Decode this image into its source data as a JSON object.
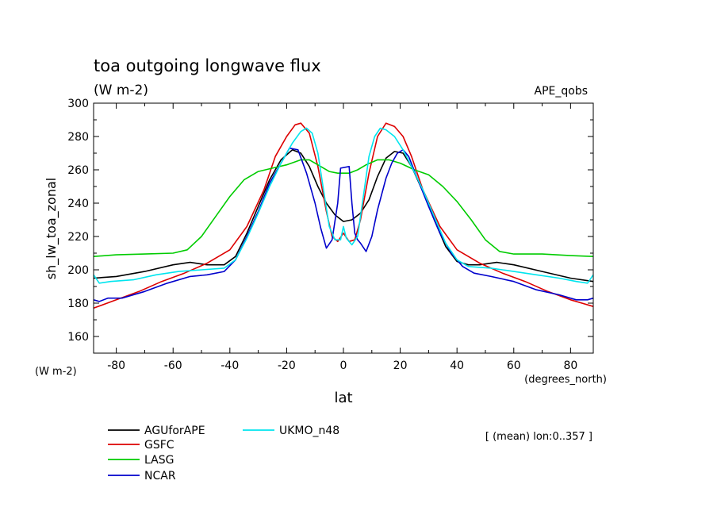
{
  "chart_data": {
    "type": "line",
    "title": "toa outgoing longwave flux",
    "units_label": "(W m-2)",
    "experiment": "APE_qobs",
    "xlabel": "lat",
    "x_units": "(degrees_north)",
    "ylabel": "sh_lw_toa_zonal",
    "y_units": "(W m-2)",
    "mean_note": "[ (mean) lon:0..357 ]",
    "xlim": [
      -88,
      88
    ],
    "ylim": [
      150,
      300
    ],
    "xticks": [
      -80,
      -60,
      -40,
      -20,
      0,
      20,
      40,
      60,
      80
    ],
    "yticks": [
      160,
      180,
      200,
      220,
      240,
      260,
      280,
      300
    ],
    "xtick_labels": [
      "-80",
      "-60",
      "-40",
      "-20",
      "0",
      "20",
      "40",
      "60",
      "80"
    ],
    "ytick_labels": [
      "160",
      "180",
      "200",
      "220",
      "240",
      "260",
      "280",
      "300"
    ],
    "grid": false,
    "legend_placement": "bottom-left",
    "series": [
      {
        "name": "AGUforAPE",
        "color": "#000000",
        "points": [
          [
            -88,
            195
          ],
          [
            -80,
            196
          ],
          [
            -70,
            199
          ],
          [
            -60,
            203
          ],
          [
            -54,
            204.5
          ],
          [
            -48,
            203
          ],
          [
            -42,
            203
          ],
          [
            -38,
            208
          ],
          [
            -34,
            222
          ],
          [
            -30,
            238
          ],
          [
            -26,
            254
          ],
          [
            -22,
            266
          ],
          [
            -18,
            272
          ],
          [
            -15,
            270
          ],
          [
            -12,
            262
          ],
          [
            -9,
            250
          ],
          [
            -6,
            240
          ],
          [
            -3,
            233
          ],
          [
            0,
            229
          ],
          [
            3,
            230
          ],
          [
            6,
            234
          ],
          [
            9,
            242
          ],
          [
            12,
            256
          ],
          [
            15,
            267
          ],
          [
            18,
            271
          ],
          [
            21,
            270
          ],
          [
            24,
            262
          ],
          [
            28,
            247
          ],
          [
            32,
            230
          ],
          [
            36,
            214
          ],
          [
            40,
            205
          ],
          [
            44,
            203
          ],
          [
            48,
            203
          ],
          [
            54,
            204.5
          ],
          [
            60,
            203
          ],
          [
            70,
            199
          ],
          [
            80,
            195
          ],
          [
            88,
            193
          ]
        ]
      },
      {
        "name": "GSFC",
        "color": "#dd0000",
        "points": [
          [
            -88,
            177
          ],
          [
            -80,
            182
          ],
          [
            -72,
            187
          ],
          [
            -64,
            193
          ],
          [
            -56,
            198
          ],
          [
            -48,
            204
          ],
          [
            -40,
            212
          ],
          [
            -34,
            226
          ],
          [
            -28,
            248
          ],
          [
            -24,
            268
          ],
          [
            -20,
            280
          ],
          [
            -17,
            287
          ],
          [
            -15,
            288
          ],
          [
            -12,
            282
          ],
          [
            -9,
            262
          ],
          [
            -6,
            235
          ],
          [
            -4,
            220
          ],
          [
            -2,
            217
          ],
          [
            0,
            222
          ],
          [
            2,
            217
          ],
          [
            4,
            218
          ],
          [
            6,
            230
          ],
          [
            9,
            258
          ],
          [
            12,
            280
          ],
          [
            15,
            288
          ],
          [
            18,
            286
          ],
          [
            21,
            280
          ],
          [
            24,
            268
          ],
          [
            28,
            248
          ],
          [
            34,
            226
          ],
          [
            40,
            212
          ],
          [
            48,
            204
          ],
          [
            56,
            198
          ],
          [
            64,
            193
          ],
          [
            72,
            187
          ],
          [
            80,
            182
          ],
          [
            88,
            178
          ]
        ]
      },
      {
        "name": "LASG",
        "color": "#00cc00",
        "points": [
          [
            -88,
            208
          ],
          [
            -80,
            209
          ],
          [
            -70,
            209.5
          ],
          [
            -60,
            210
          ],
          [
            -55,
            212
          ],
          [
            -50,
            220
          ],
          [
            -45,
            232
          ],
          [
            -40,
            244
          ],
          [
            -35,
            254
          ],
          [
            -30,
            259
          ],
          [
            -25,
            261
          ],
          [
            -20,
            263
          ],
          [
            -15,
            266
          ],
          [
            -12,
            266
          ],
          [
            -8,
            262
          ],
          [
            -5,
            259
          ],
          [
            -2,
            258
          ],
          [
            0,
            258
          ],
          [
            2,
            258
          ],
          [
            5,
            260
          ],
          [
            8,
            263
          ],
          [
            12,
            266
          ],
          [
            16,
            266
          ],
          [
            20,
            264
          ],
          [
            25,
            260
          ],
          [
            30,
            257
          ],
          [
            35,
            250
          ],
          [
            40,
            241
          ],
          [
            45,
            230
          ],
          [
            50,
            218
          ],
          [
            55,
            211
          ],
          [
            60,
            209.5
          ],
          [
            70,
            209.5
          ],
          [
            80,
            208.5
          ],
          [
            88,
            208
          ]
        ]
      },
      {
        "name": "NCAR",
        "color": "#0000cc",
        "points": [
          [
            -88,
            182
          ],
          [
            -86,
            181
          ],
          [
            -83,
            183
          ],
          [
            -78,
            183
          ],
          [
            -70,
            187
          ],
          [
            -62,
            192
          ],
          [
            -54,
            196
          ],
          [
            -48,
            197
          ],
          [
            -42,
            199
          ],
          [
            -38,
            206
          ],
          [
            -34,
            220
          ],
          [
            -30,
            235
          ],
          [
            -26,
            252
          ],
          [
            -22,
            264
          ],
          [
            -19,
            273
          ],
          [
            -16,
            272
          ],
          [
            -13,
            258
          ],
          [
            -10,
            240
          ],
          [
            -8,
            225
          ],
          [
            -6,
            213
          ],
          [
            -4,
            218
          ],
          [
            -2,
            240
          ],
          [
            -1,
            261
          ],
          [
            2,
            262
          ],
          [
            3,
            240
          ],
          [
            4,
            222
          ],
          [
            5,
            218
          ],
          [
            6,
            216
          ],
          [
            8,
            211
          ],
          [
            10,
            220
          ],
          [
            12,
            236
          ],
          [
            15,
            255
          ],
          [
            17,
            264
          ],
          [
            19,
            270
          ],
          [
            21,
            272
          ],
          [
            23,
            268
          ],
          [
            26,
            255
          ],
          [
            30,
            238
          ],
          [
            34,
            222
          ],
          [
            38,
            210
          ],
          [
            42,
            202
          ],
          [
            46,
            198
          ],
          [
            52,
            196
          ],
          [
            60,
            193
          ],
          [
            68,
            188
          ],
          [
            76,
            185
          ],
          [
            82,
            182
          ],
          [
            86,
            182
          ],
          [
            88,
            183
          ]
        ]
      },
      {
        "name": "UKMO_n48",
        "color": "#00e5ee",
        "points": [
          [
            -88,
            197
          ],
          [
            -86,
            192
          ],
          [
            -82,
            193
          ],
          [
            -74,
            194
          ],
          [
            -66,
            197
          ],
          [
            -58,
            199
          ],
          [
            -50,
            200
          ],
          [
            -42,
            201
          ],
          [
            -38,
            206
          ],
          [
            -34,
            219
          ],
          [
            -30,
            234
          ],
          [
            -26,
            250
          ],
          [
            -22,
            264
          ],
          [
            -18,
            276
          ],
          [
            -15,
            283
          ],
          [
            -13,
            285
          ],
          [
            -11,
            282
          ],
          [
            -9,
            270
          ],
          [
            -7,
            248
          ],
          [
            -5,
            226
          ],
          [
            -3,
            218
          ],
          [
            -1,
            218
          ],
          [
            0,
            226
          ],
          [
            1,
            219
          ],
          [
            3,
            215
          ],
          [
            5,
            220
          ],
          [
            7,
            244
          ],
          [
            9,
            268
          ],
          [
            11,
            280
          ],
          [
            13,
            285
          ],
          [
            15,
            284
          ],
          [
            18,
            280
          ],
          [
            21,
            272
          ],
          [
            24,
            262
          ],
          [
            28,
            248
          ],
          [
            32,
            232
          ],
          [
            36,
            216
          ],
          [
            40,
            206
          ],
          [
            44,
            202
          ],
          [
            52,
            201
          ],
          [
            60,
            199
          ],
          [
            68,
            197
          ],
          [
            76,
            195
          ],
          [
            82,
            193
          ],
          [
            86,
            192
          ],
          [
            88,
            197
          ]
        ]
      }
    ]
  }
}
